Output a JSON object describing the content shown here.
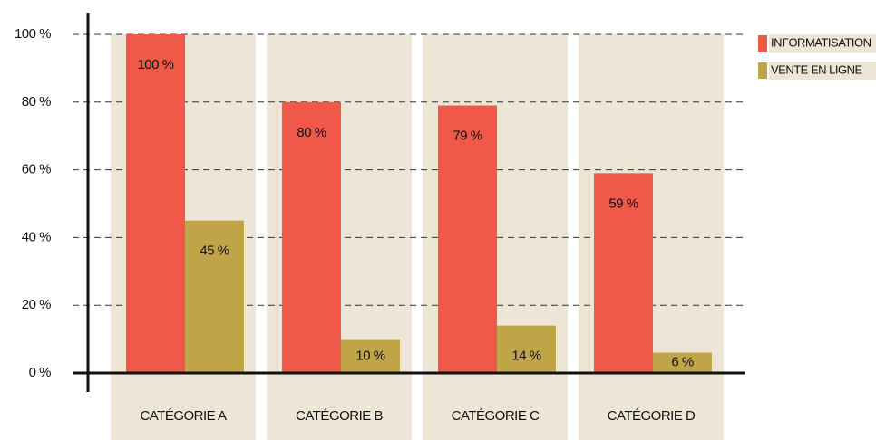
{
  "chart_data": {
    "type": "bar",
    "categories": [
      "CATÉGORIE A",
      "CATÉGORIE B",
      "CATÉGORIE C",
      "CATÉGORIE D"
    ],
    "series": [
      {
        "name": "INFORMATISATION",
        "color": "#f0584a",
        "values": [
          100,
          80,
          79,
          59
        ],
        "value_labels": [
          "100 %",
          "80 %",
          "79 %",
          "59 %"
        ]
      },
      {
        "name": "VENTE EN LIGNE",
        "color": "#bfa548",
        "values": [
          45,
          10,
          14,
          6
        ],
        "value_labels": [
          "45 %",
          "10 %",
          "14 %",
          "6 %"
        ]
      }
    ],
    "ylim": [
      0,
      100
    ],
    "yticks": [
      {
        "value": 0,
        "label": "0 %"
      },
      {
        "value": 20,
        "label": "20 %"
      },
      {
        "value": 40,
        "label": "40 %"
      },
      {
        "value": 60,
        "label": "60 %"
      },
      {
        "value": 80,
        "label": "80 %"
      },
      {
        "value": 100,
        "label": "100 %"
      }
    ],
    "grid": true,
    "legend": "top-right"
  }
}
